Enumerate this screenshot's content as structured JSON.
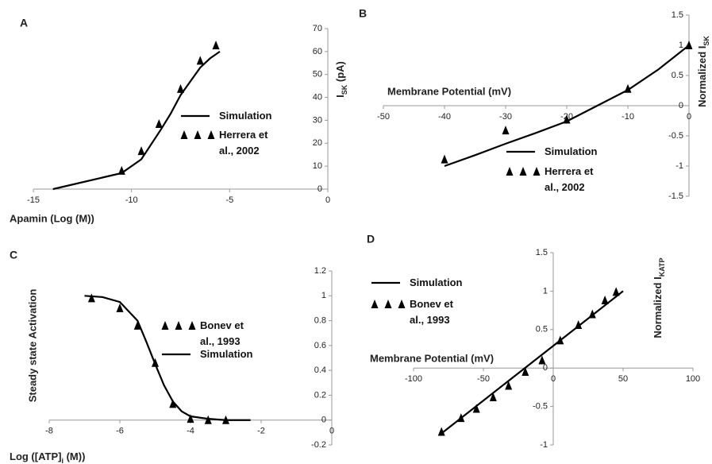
{
  "chart_data": [
    {
      "type": "line",
      "panel": "A",
      "xlabel": "Apamin (Log (M))",
      "ylabel": {
        "main": "I",
        "sub": "SK",
        "after": " (pA)"
      },
      "xlim": [
        -15,
        0
      ],
      "xticks": [
        -15,
        -10,
        -5,
        0
      ],
      "ylim": [
        0,
        70
      ],
      "yticks": [
        0,
        10,
        20,
        30,
        40,
        50,
        60,
        70
      ],
      "series": [
        {
          "name": "Simulation",
          "mode": "line",
          "color": "#000000",
          "x": [
            -14,
            -10.5,
            -9.5,
            -8.5,
            -8,
            -7.5,
            -7,
            -6.5,
            -6,
            -5.5
          ],
          "values": [
            0,
            7,
            13,
            26,
            33,
            41,
            47,
            53,
            57,
            60
          ]
        },
        {
          "name": "Herrera et al., 2002",
          "mode": "marker",
          "color": "#000000",
          "x": [
            -10.5,
            -9.5,
            -8.6,
            -7.5,
            -6.5,
            -5.7
          ],
          "values": [
            8,
            16.6,
            28.4,
            43.7,
            56,
            62.7
          ]
        }
      ]
    },
    {
      "type": "line",
      "panel": "B",
      "xlabel": "Membrane Potential (mV)",
      "ylabel": {
        "main": "Normalized I",
        "sub": "SK",
        "after": ""
      },
      "xlim": [
        -50,
        0
      ],
      "xticks": [
        -50,
        -40,
        -30,
        -20,
        -10,
        0
      ],
      "ylim": [
        -1.5,
        1.5
      ],
      "yticks": [
        -1.5,
        -1,
        -0.5,
        0,
        0.5,
        1,
        1.5
      ],
      "series": [
        {
          "name": "Simulation",
          "mode": "line",
          "color": "#000000",
          "x": [
            -40,
            -35,
            -30,
            -25,
            -20,
            -15,
            -10,
            -5,
            0
          ],
          "values": [
            -1,
            -0.82,
            -0.63,
            -0.45,
            -0.26,
            0,
            0.26,
            0.6,
            1
          ]
        },
        {
          "name": "Herrera et al., 2002",
          "mode": "marker",
          "color": "#000000",
          "x": [
            -40,
            -30,
            -20,
            -10,
            0
          ],
          "values": [
            -0.89,
            -0.41,
            -0.23,
            0.28,
            1
          ]
        }
      ]
    },
    {
      "type": "line",
      "panel": "C",
      "xlabel": {
        "main": "Log ([ATP]",
        "sub": "i",
        "after": " (M))"
      },
      "ylabel": "Steady state Activation",
      "xlim": [
        -8,
        0
      ],
      "xticks": [
        -8,
        -6,
        -4,
        -2,
        0
      ],
      "ylim": [
        -0.2,
        1.2
      ],
      "yticks": [
        -0.2,
        0,
        0.2,
        0.4,
        0.6,
        0.8,
        1,
        1.2
      ],
      "series": [
        {
          "name": "Bonev et al., 1993",
          "mode": "marker",
          "color": "#000000",
          "x": [
            -6.8,
            -6,
            -5.5,
            -5,
            -4.5,
            -4,
            -3.5,
            -3
          ],
          "values": [
            0.98,
            0.9,
            0.76,
            0.46,
            0.13,
            0.01,
            0,
            0
          ]
        },
        {
          "name": "Simulation",
          "mode": "line",
          "color": "#000000",
          "x": [
            -7,
            -6.5,
            -6,
            -5.5,
            -5.25,
            -5,
            -4.75,
            -4.5,
            -4.25,
            -4,
            -3.5,
            -3,
            -2.3
          ],
          "values": [
            1,
            0.99,
            0.95,
            0.8,
            0.63,
            0.45,
            0.28,
            0.15,
            0.07,
            0.03,
            0.01,
            0,
            0
          ]
        }
      ]
    },
    {
      "type": "line",
      "panel": "D",
      "xlabel": "Membrane Potential (mV)",
      "ylabel": {
        "main": "Normalized I",
        "sub": "KATP",
        "after": ""
      },
      "xlim": [
        -100,
        100
      ],
      "xticks": [
        -100,
        -50,
        0,
        50,
        100
      ],
      "ylim": [
        -1,
        1.5
      ],
      "yticks": [
        -1,
        -0.5,
        0,
        0.5,
        1,
        1.5
      ],
      "series": [
        {
          "name": "Simulation",
          "mode": "line",
          "color": "#000000",
          "x": [
            -80,
            50
          ],
          "values": [
            -0.85,
            1
          ]
        },
        {
          "name": "Bonev et al., 1993",
          "mode": "marker",
          "color": "#000000",
          "x": [
            -80,
            -66,
            -55,
            -43,
            -32,
            -20,
            -8,
            5,
            18,
            28,
            37,
            45
          ],
          "values": [
            -0.83,
            -0.65,
            -0.53,
            -0.38,
            -0.23,
            -0.05,
            0.1,
            0.36,
            0.56,
            0.7,
            0.88,
            0.99
          ]
        }
      ]
    }
  ]
}
